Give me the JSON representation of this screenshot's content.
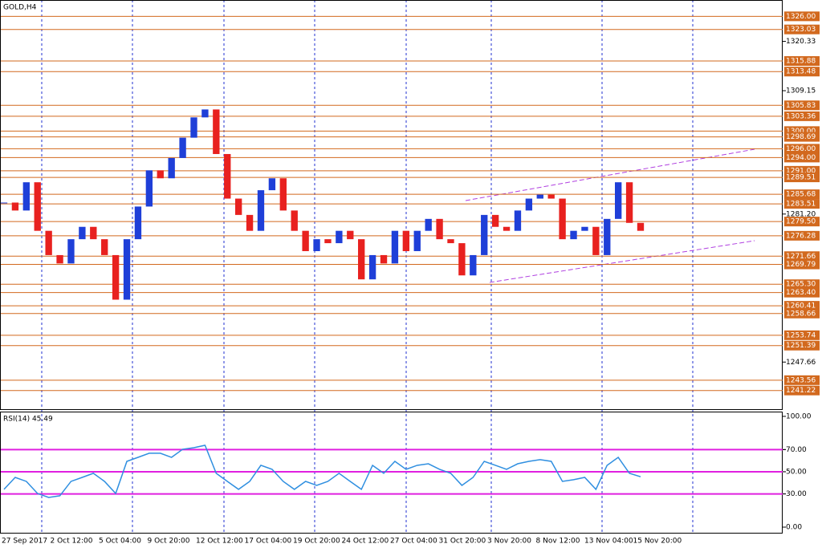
{
  "chart_data": [
    {
      "type": "candlestick",
      "title": "GOLD,H4",
      "values": [
        1283.8,
        1282.0,
        1288.4,
        1277.4,
        1271.9,
        1270.0,
        1275.5,
        1278.3,
        1275.5,
        1271.9,
        1261.8,
        1275.5,
        1282.9,
        1291.1,
        1289.3,
        1293.9,
        1298.5,
        1303.1,
        1304.9,
        1294.8,
        1284.7,
        1281.0,
        1277.4,
        1286.6,
        1289.3,
        1282.0,
        1277.4,
        1272.8,
        1275.5,
        1274.6,
        1277.4,
        1275.5,
        1266.4,
        1271.9,
        1270.0,
        1277.4,
        1272.8,
        1277.4,
        1280.1,
        1275.5,
        1274.6,
        1267.3,
        1271.9,
        1281.0,
        1278.3,
        1277.4,
        1282.0,
        1284.7,
        1285.6,
        1284.7,
        1275.5,
        1277.4,
        1278.3,
        1271.9,
        1280.1,
        1288.4,
        1279.2,
        1277.4
      ],
      "up_color": "#1f3fd8",
      "down_color": "#e8211f",
      "ylim": [
        1236.8,
        1329.7
      ],
      "yticks": [
        1320.33,
        1309.15,
        {
          "value": 1281.2,
          "label": "1281.20"
        },
        1247.66
      ],
      "levels": [
        {
          "value": 1326,
          "label": "1326.00"
        },
        {
          "value": 1323.03,
          "label": "1323.03"
        },
        {
          "value": 1315.88,
          "label": "1315.88"
        },
        {
          "value": 1313.48,
          "label": "1313.48"
        },
        {
          "value": 1305.83,
          "label": "1305.83"
        },
        {
          "value": 1303.36,
          "label": "1303.36"
        },
        {
          "value": 1300,
          "label": "1300.00"
        },
        {
          "value": 1298.69,
          "label": "1298.69"
        },
        {
          "value": 1296,
          "label": "1296.00"
        },
        {
          "value": 1294,
          "label": "1294.00"
        },
        {
          "value": 1291,
          "label": "1291.00"
        },
        {
          "value": 1289.51,
          "label": "1289.51"
        },
        {
          "value": 1285.68,
          "label": "1285.68"
        },
        {
          "value": 1283.51,
          "label": "1283.51"
        },
        {
          "value": 1279.5,
          "label": "1279.50"
        },
        {
          "value": 1276.28,
          "label": "1276.28"
        },
        {
          "value": 1271.66,
          "label": "1271.66"
        },
        {
          "value": 1269.79,
          "label": "1269.79"
        },
        {
          "value": 1265.3,
          "label": "1265.30"
        },
        {
          "value": 1263.4,
          "label": "1263.40"
        },
        {
          "value": 1260.41,
          "label": "1260.41"
        },
        {
          "value": 1258.66,
          "label": "1258.66"
        },
        {
          "value": 1253.74,
          "label": "1253.74"
        },
        {
          "value": 1251.39,
          "label": "1251.39"
        },
        {
          "value": 1243.56,
          "label": "1243.56"
        },
        {
          "value": 1241.22,
          "label": "1241.22"
        }
      ],
      "level_color": "#d2691e",
      "time_labels": [
        "27 Sep 2017",
        "2 Oct 12:00",
        "5 Oct 04:00",
        "9 Oct 20:00",
        "12 Oct 12:00",
        "17 Oct 04:00",
        "19 Oct 20:00",
        "24 Oct 12:00",
        "27 Oct 04:00",
        "31 Oct 20:00",
        "3 Nov 20:00",
        "8 Nov 12:00",
        "13 Nov 04:00",
        "15 Nov 20:00"
      ]
    },
    {
      "type": "line",
      "title": "RSI(14) 45.49",
      "color": "#2f8fe0",
      "values": [
        34.1,
        44.9,
        41.3,
        30.4,
        26.8,
        28.3,
        41.3,
        44.9,
        48.6,
        41.3,
        30.4,
        59.4,
        63.0,
        66.7,
        66.7,
        63.0,
        70.3,
        71.7,
        73.9,
        48.6,
        41.3,
        34.1,
        41.3,
        55.8,
        52.2,
        41.3,
        34.1,
        41.3,
        37.7,
        41.3,
        48.6,
        41.3,
        34.1,
        55.8,
        48.6,
        59.4,
        52.2,
        55.8,
        57.2,
        52.2,
        48.6,
        37.7,
        44.9,
        59.4,
        55.8,
        52.2,
        57.2,
        59.4,
        60.9,
        59.4,
        41.3,
        42.8,
        44.9,
        34.1,
        55.8,
        63.0,
        48.6,
        45.49
      ],
      "ylim": [
        -5.8,
        104.3
      ],
      "yticks": [
        {
          "value": 100,
          "label": "100.00"
        },
        {
          "value": 70,
          "label": "70.00"
        },
        {
          "value": 50,
          "label": "50.00"
        },
        {
          "value": 30,
          "label": "30.00"
        },
        {
          "value": 0,
          "label": "0.00"
        }
      ],
      "levels": [
        70,
        50,
        30
      ],
      "level_color": "#e020e0"
    }
  ]
}
